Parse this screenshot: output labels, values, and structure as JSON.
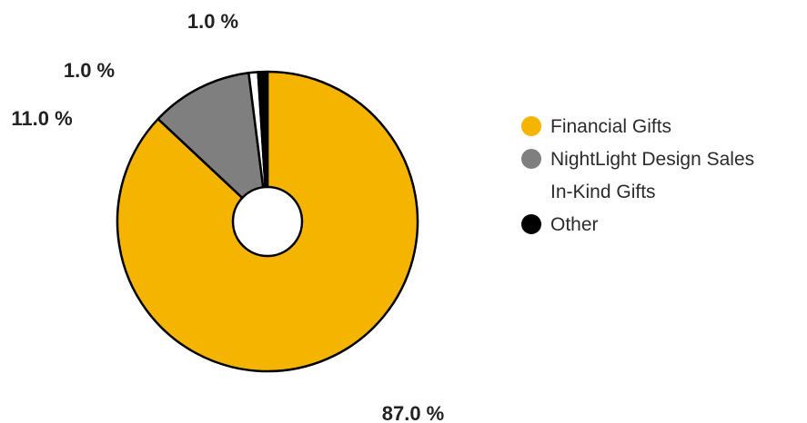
{
  "chart_data": {
    "type": "pie",
    "variant": "donut",
    "categories": [
      "Financial Gifts",
      "NightLight Design Sales",
      "In-Kind Gifts",
      "Other"
    ],
    "values": [
      87.0,
      11.0,
      1.0,
      1.0
    ],
    "data_labels": [
      "87.0 %",
      "11.0 %",
      "1.0 %",
      "1.0 %"
    ],
    "colors": [
      "#f4b400",
      "#7f7f7f",
      "#ffffff",
      "#000000"
    ],
    "legend_position": "right",
    "title": ""
  }
}
